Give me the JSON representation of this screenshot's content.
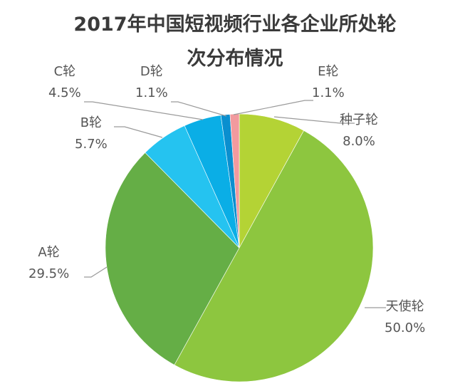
{
  "title_line1": "2017年中国短视频行业各企业所处轮",
  "title_line2": "次分布情况",
  "chart_data": {
    "type": "pie",
    "title": "2017年中国短视频行业各企业所处轮次分布情况",
    "categories": [
      "种子轮",
      "天使轮",
      "A轮",
      "B轮",
      "C轮",
      "D轮",
      "E轮"
    ],
    "values": [
      8.0,
      50.0,
      29.5,
      5.7,
      4.5,
      1.1,
      1.1
    ],
    "labels": [
      "8.0%",
      "50.0%",
      "29.5%",
      "5.7%",
      "4.5%",
      "1.1%",
      "1.1%"
    ],
    "colors": [
      "#b4d335",
      "#8dc63f",
      "#65ae46",
      "#25c3f0",
      "#0aaee6",
      "#0a8fcf",
      "#f29a9e"
    ],
    "start_angle": "top",
    "direction": "clockwise",
    "legend": "none (leader-line labels)"
  }
}
